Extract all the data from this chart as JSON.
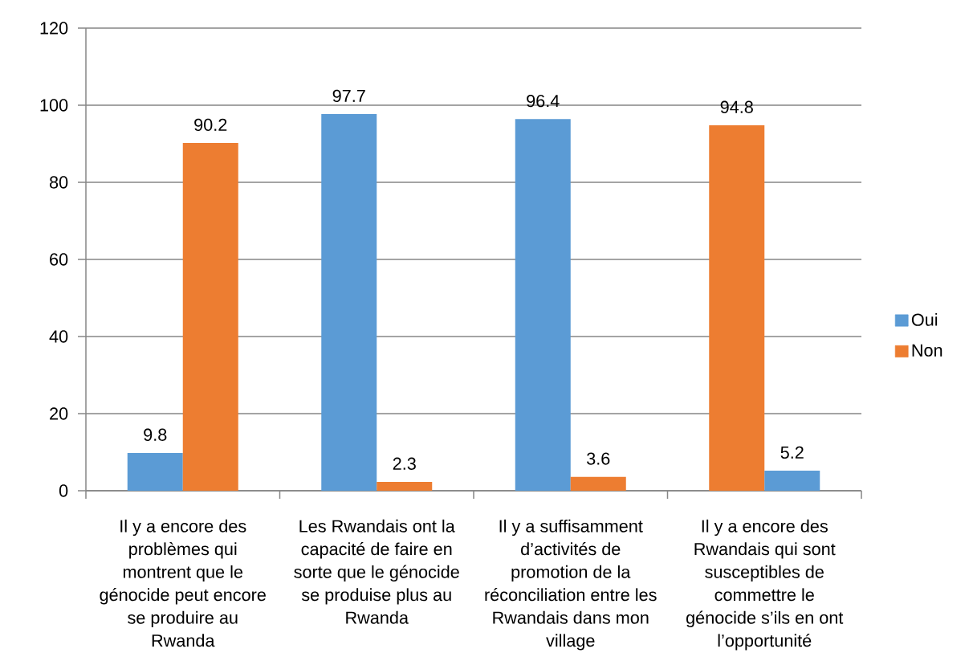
{
  "chart_data": {
    "type": "bar",
    "categories": [
      "Il y a encore des problèmes qui montrent que le génocide peut encore se produire au Rwanda",
      "Les Rwandais ont la capacité de faire en sorte que le génocide se produise plus au Rwanda",
      "Il y a suffisamment d’activités de promotion de la réconciliation entre les Rwandais dans mon village",
      "Il y a encore des Rwandais qui sont susceptibles de commettre le génocide s’ils en ont l’opportunité"
    ],
    "series": [
      {
        "name": "Oui",
        "color": "#5b9bd5",
        "colors": [
          "#5b9bd5",
          "#5b9bd5",
          "#5b9bd5",
          "#ed7d31"
        ],
        "values": [
          9.8,
          97.7,
          96.4,
          94.8
        ]
      },
      {
        "name": "Non",
        "color": "#ed7d31",
        "colors": [
          "#ed7d31",
          "#ed7d31",
          "#ed7d31",
          "#5b9bd5"
        ],
        "values": [
          90.2,
          2.3,
          3.6,
          5.2
        ]
      }
    ],
    "ylim": [
      0,
      120
    ],
    "yticks": [
      0,
      20,
      40,
      60,
      80,
      100,
      120
    ],
    "grid": "y",
    "legend": "right",
    "data_labels": true
  }
}
